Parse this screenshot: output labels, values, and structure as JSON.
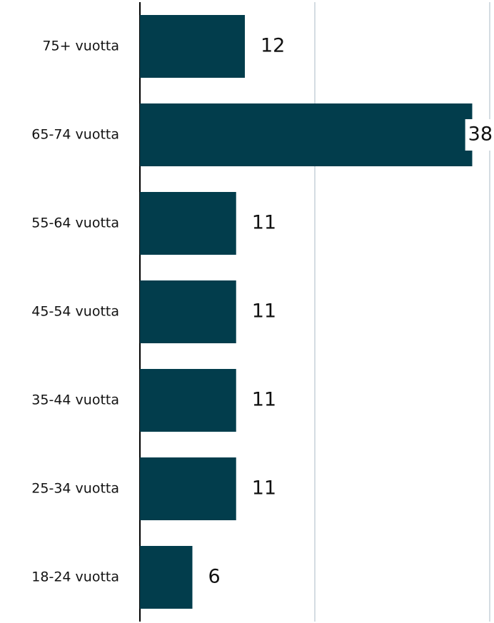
{
  "chart_data": {
    "type": "bar",
    "orientation": "horizontal",
    "categories": [
      "75+ vuotta",
      "65-74 vuotta",
      "55-64 vuotta",
      "45-54 vuotta",
      "35-44 vuotta",
      "25-34 vuotta",
      "18-24 vuotta"
    ],
    "values": [
      12,
      38,
      11,
      11,
      11,
      11,
      6
    ],
    "color": "#023d4c",
    "xlim": [
      0,
      40
    ],
    "xticks": [
      0,
      20,
      40
    ],
    "grid": true
  }
}
